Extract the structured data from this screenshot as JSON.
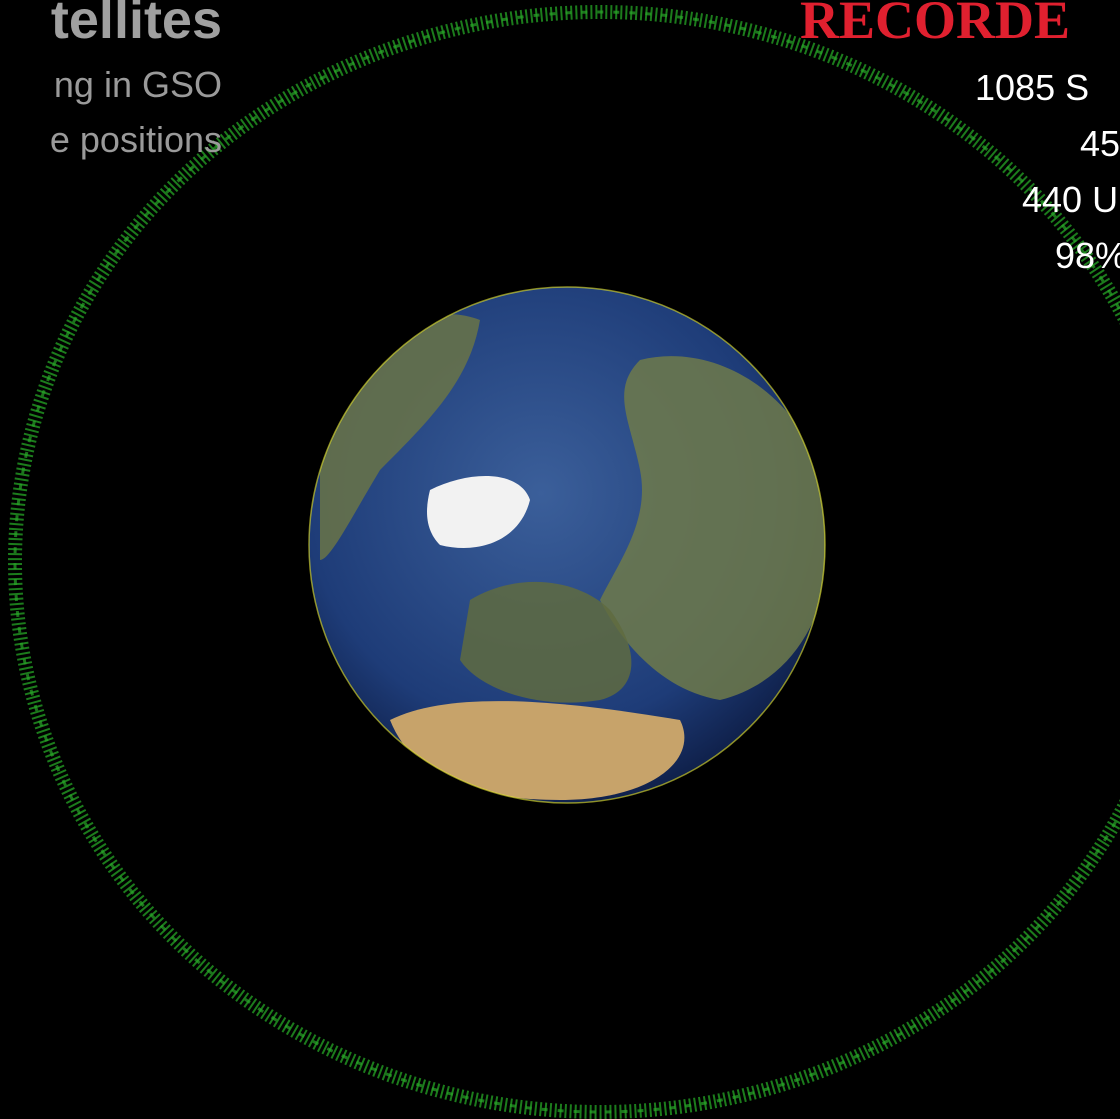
{
  "header": {
    "title": "tellites",
    "lines": [
      "ng in GSO",
      "e positions"
    ]
  },
  "stats": {
    "title": "RECORDE",
    "lines": [
      "1085 S",
      "45",
      "440 U",
      "98%"
    ]
  }
}
